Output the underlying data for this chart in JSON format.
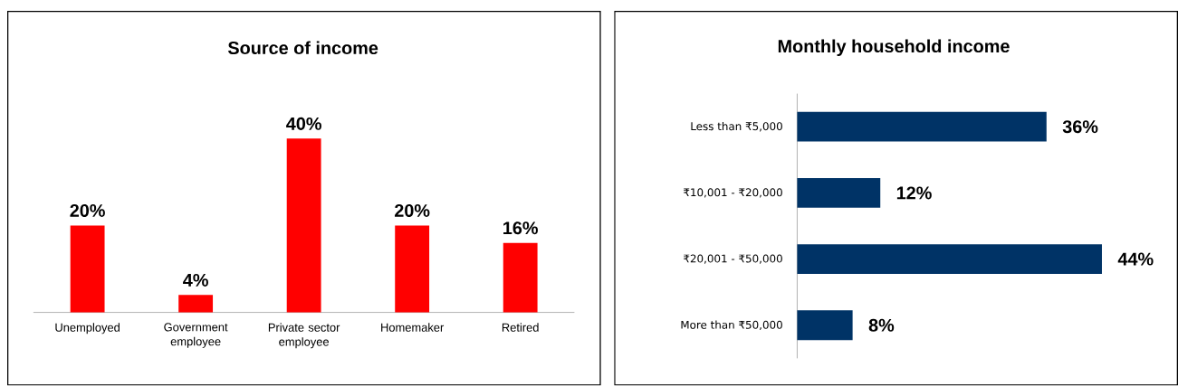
{
  "chart_data": [
    {
      "type": "bar",
      "title": "Source of income",
      "categories": [
        "Unemployed",
        "Government employee",
        "Private sector employee",
        "Homemaker",
        "Retired"
      ],
      "values": [
        20,
        4,
        40,
        20,
        16
      ],
      "value_labels": [
        "20%",
        "4%",
        "40%",
        "20%",
        "16%"
      ],
      "color": "#ff0000"
    },
    {
      "type": "bar",
      "orientation": "horizontal",
      "title": "Monthly household income",
      "categories": [
        "Less than ₹5,000",
        "₹10,001 - ₹20,000",
        "₹20,001 - ₹50,000",
        "More than ₹50,000"
      ],
      "values": [
        36,
        12,
        44,
        8
      ],
      "value_labels": [
        "36%",
        "12%",
        "44%",
        "8%"
      ],
      "color": "#003366"
    }
  ]
}
